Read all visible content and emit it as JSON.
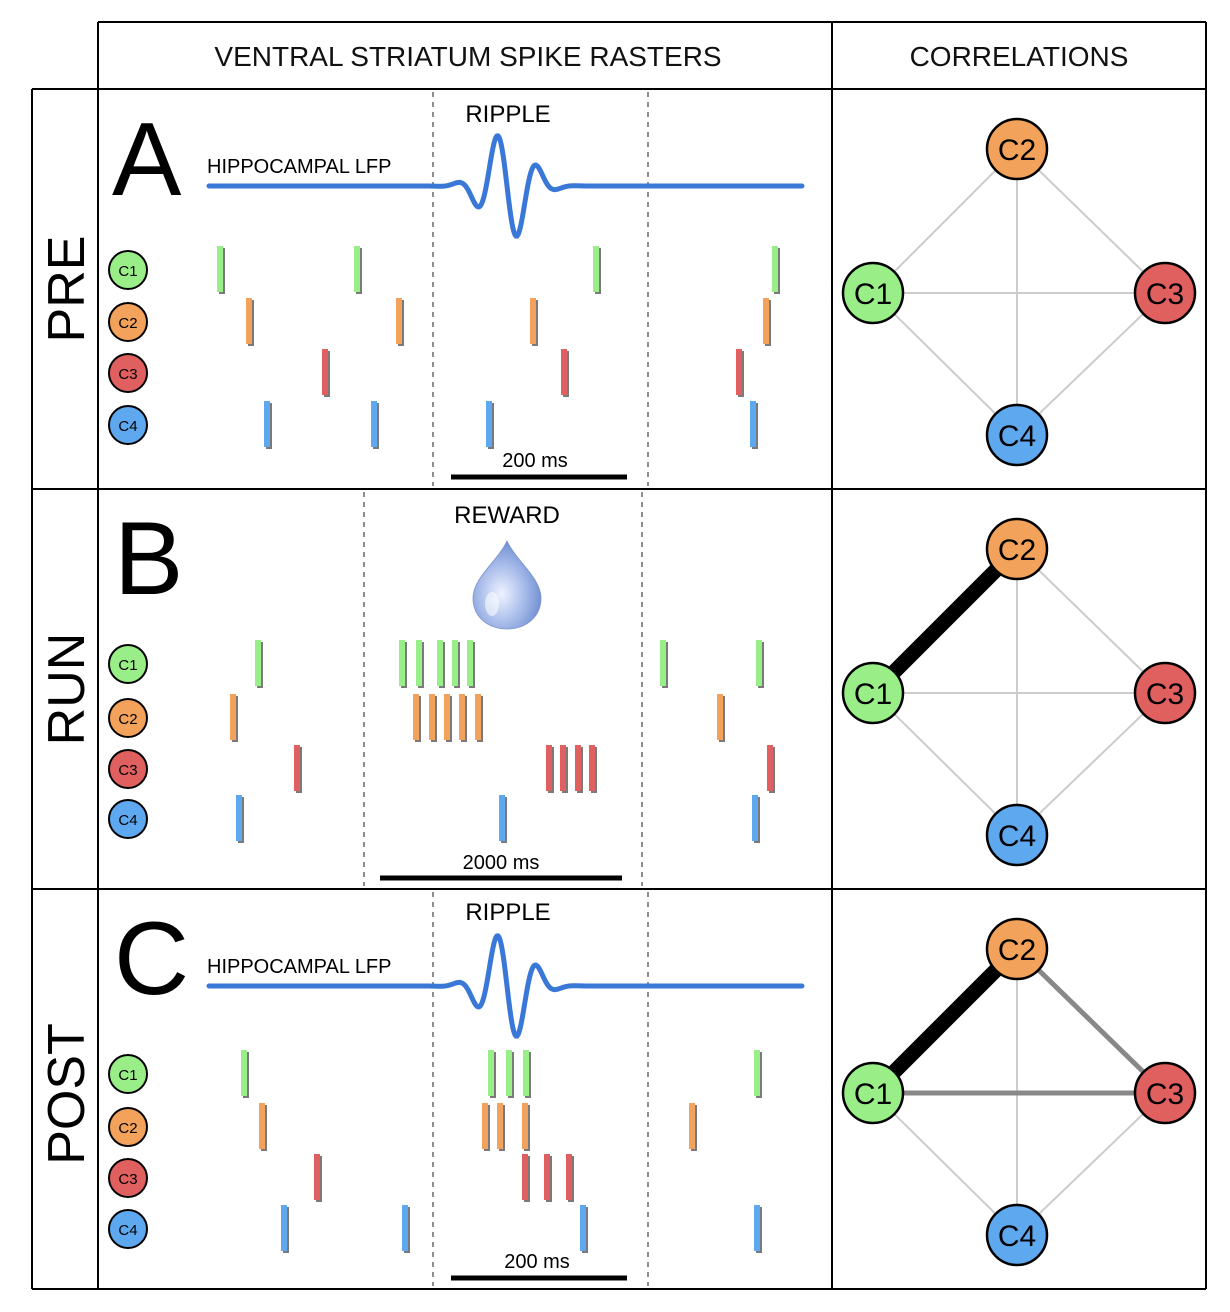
{
  "headers": {
    "rasters": "VENTRAL STRIATUM SPIKE RASTERS",
    "correlations": "CORRELATIONS"
  },
  "colors": {
    "C1": "#99ee88",
    "C2": "#f2a25a",
    "C3": "#e06060",
    "C4": "#5ea8f0",
    "lfp": "#3a78d8",
    "edge_weak": "#cccccc",
    "edge_mid": "#888888",
    "edge_strong": "#000000"
  },
  "cells": [
    "C1",
    "C2",
    "C3",
    "C4"
  ],
  "panels": [
    {
      "row_label": "PRE",
      "letter": "A",
      "event_label": "RIPPLE",
      "lfp_label": "HIPPOCAMPAL LFP",
      "scalebar_label": "200 ms",
      "spikes": {
        "C1": [
          217,
          354,
          593,
          772
        ],
        "C2": [
          246,
          396,
          530,
          763
        ],
        "C3": [
          322,
          561,
          736
        ],
        "C4": [
          264,
          371,
          486,
          750
        ]
      },
      "edges": {
        "C1-C2": "weak",
        "C2-C3": "weak",
        "C1-C3": "weak",
        "C2-C4": "weak",
        "C1-C4": "weak",
        "C3-C4": "weak"
      }
    },
    {
      "row_label": "RUN",
      "letter": "B",
      "event_label": "REWARD",
      "scalebar_label": "2000 ms",
      "spikes": {
        "C1": [
          255,
          399,
          416,
          437,
          452,
          467,
          660,
          756
        ],
        "C2": [
          230,
          413,
          429,
          444,
          459,
          475,
          717
        ],
        "C3": [
          294,
          546,
          560,
          575,
          589,
          767
        ],
        "C4": [
          236,
          499,
          752
        ]
      },
      "edges": {
        "C1-C2": "strong",
        "C2-C3": "weak",
        "C1-C3": "weak",
        "C2-C4": "weak",
        "C1-C4": "weak",
        "C3-C4": "weak"
      }
    },
    {
      "row_label": "POST",
      "letter": "C",
      "event_label": "RIPPLE",
      "lfp_label": "HIPPOCAMPAL LFP",
      "scalebar_label": "200 ms",
      "spikes": {
        "C1": [
          241,
          488,
          506,
          523,
          754
        ],
        "C2": [
          259,
          482,
          497,
          522,
          689
        ],
        "C3": [
          314,
          522,
          544,
          566
        ],
        "C4": [
          281,
          402,
          580,
          754
        ]
      },
      "edges": {
        "C1-C2": "strong",
        "C2-C3": "mid",
        "C1-C3": "mid",
        "C2-C4": "weak",
        "C1-C4": "weak",
        "C3-C4": "weak"
      }
    }
  ]
}
